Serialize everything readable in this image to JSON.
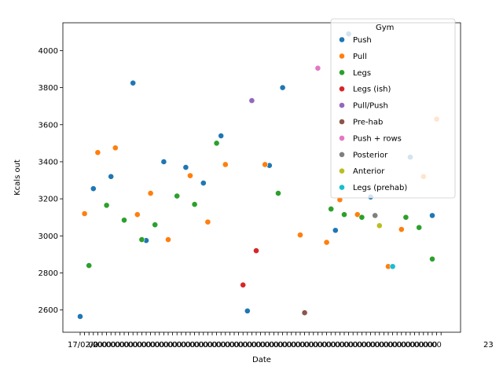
{
  "chart_data": {
    "type": "scatter",
    "xlabel": "Date",
    "ylabel": "Kcals out",
    "ylim": [
      2480,
      4150
    ],
    "yticks": [
      2600,
      2800,
      3000,
      3200,
      3400,
      3600,
      3800,
      4000
    ],
    "x_categories_count": 83,
    "x_tick_text_visible_start": "17/02/2",
    "x_tick_text_visible_end": "23",
    "legend": {
      "title": "Gym",
      "placement": "upper-right",
      "entries": [
        {
          "name": "Push",
          "color": "#1f77b4"
        },
        {
          "name": "Pull",
          "color": "#ff7f0e"
        },
        {
          "name": "Legs",
          "color": "#2ca02c"
        },
        {
          "name": "Legs (ish)",
          "color": "#d62728"
        },
        {
          "name": "Pull/Push",
          "color": "#9467bd"
        },
        {
          "name": "Pre-hab",
          "color": "#8c564b"
        },
        {
          "name": "Push + rows",
          "color": "#e377c2"
        },
        {
          "name": "Posterior",
          "color": "#7f7f7f"
        },
        {
          "name": "Anterior",
          "color": "#bcbd22"
        },
        {
          "name": "Legs (prehab)",
          "color": "#17becf"
        }
      ]
    },
    "series": [
      {
        "name": "Push",
        "points": [
          [
            0,
            2565
          ],
          [
            3,
            3255
          ],
          [
            7,
            3320
          ],
          [
            12,
            3825
          ],
          [
            15,
            2975
          ],
          [
            19,
            3400
          ],
          [
            24,
            3370
          ],
          [
            28,
            3285
          ],
          [
            32,
            3540
          ],
          [
            38,
            2595
          ],
          [
            43,
            3380
          ],
          [
            46,
            3800
          ],
          [
            58,
            3030
          ],
          [
            61,
            4090
          ],
          [
            66,
            3210
          ],
          [
            75,
            3425
          ],
          [
            80,
            3110
          ]
        ]
      },
      {
        "name": "Pull",
        "points": [
          [
            1,
            3120
          ],
          [
            4,
            3450
          ],
          [
            8,
            3475
          ],
          [
            13,
            3115
          ],
          [
            16,
            3230
          ],
          [
            20,
            2980
          ],
          [
            25,
            3325
          ],
          [
            29,
            3075
          ],
          [
            33,
            3385
          ],
          [
            42,
            3385
          ],
          [
            50,
            3005
          ],
          [
            56,
            2965
          ],
          [
            59,
            3195
          ],
          [
            63,
            3115
          ],
          [
            70,
            2835
          ],
          [
            73,
            3035
          ],
          [
            78,
            3320
          ],
          [
            81,
            3630
          ]
        ]
      },
      {
        "name": "Legs",
        "points": [
          [
            2,
            2840
          ],
          [
            6,
            3165
          ],
          [
            10,
            3085
          ],
          [
            14,
            2980
          ],
          [
            17,
            3060
          ],
          [
            22,
            3215
          ],
          [
            26,
            3170
          ],
          [
            31,
            3500
          ],
          [
            45,
            3230
          ],
          [
            57,
            3145
          ],
          [
            60,
            3115
          ],
          [
            64,
            3100
          ],
          [
            74,
            3100
          ],
          [
            77,
            3045
          ],
          [
            80,
            2875
          ]
        ]
      },
      {
        "name": "Legs (ish)",
        "points": [
          [
            37,
            2735
          ],
          [
            40,
            2920
          ]
        ]
      },
      {
        "name": "Pull/Push",
        "points": [
          [
            39,
            3730
          ]
        ]
      },
      {
        "name": "Pre-hab",
        "points": [
          [
            51,
            2585
          ]
        ]
      },
      {
        "name": "Push + rows",
        "points": [
          [
            54,
            3905
          ]
        ]
      },
      {
        "name": "Posterior",
        "points": [
          [
            67,
            3110
          ]
        ]
      },
      {
        "name": "Anterior",
        "points": [
          [
            68,
            3055
          ]
        ]
      },
      {
        "name": "Legs (prehab)",
        "points": [
          [
            71,
            2835
          ]
        ]
      }
    ]
  }
}
